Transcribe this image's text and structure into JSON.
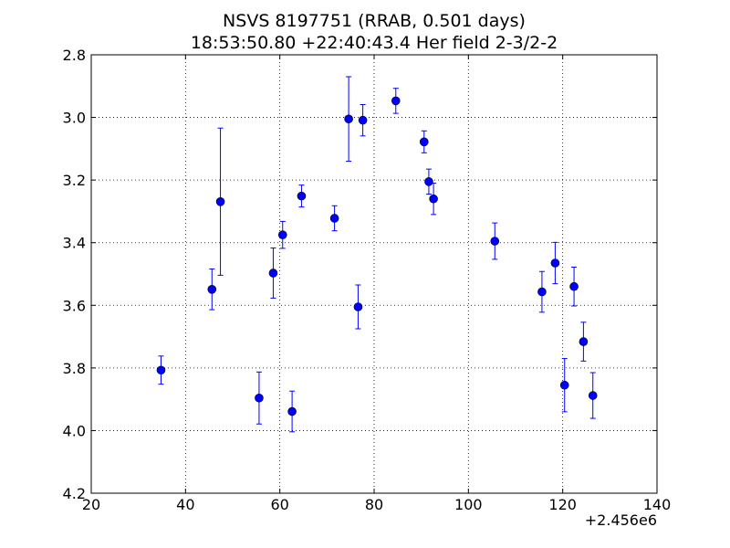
{
  "chart_data": {
    "type": "scatter",
    "title": "NSVS 8197751 (RRAB, 0.501 days)",
    "subtitle": "18:53:50.80 +22:40:43.4 Her field 2-3/2-2",
    "xlabel": "",
    "ylabel": "",
    "x_offset_label": "+2.456e6",
    "xlim": [
      20,
      140
    ],
    "ylim": [
      2.8,
      4.2
    ],
    "y_inverted": true,
    "x_ticks": [
      "20",
      "40",
      "60",
      "80",
      "100",
      "120",
      "140"
    ],
    "y_ticks": [
      "2.8",
      "3.0",
      "3.2",
      "3.4",
      "3.6",
      "3.8",
      "4.0",
      "4.2"
    ],
    "grid": true,
    "marker_color": "#0000ff",
    "points": [
      {
        "x": 34.8,
        "y": 3.807,
        "err": 0.045
      },
      {
        "x": 45.6,
        "y": 3.549,
        "err": 0.065
      },
      {
        "x": 47.4,
        "y": 3.269,
        "err": 0.235
      },
      {
        "x": 55.6,
        "y": 3.896,
        "err": 0.083
      },
      {
        "x": 58.6,
        "y": 3.497,
        "err": 0.08
      },
      {
        "x": 60.6,
        "y": 3.375,
        "err": 0.043
      },
      {
        "x": 62.6,
        "y": 3.939,
        "err": 0.065
      },
      {
        "x": 64.6,
        "y": 3.251,
        "err": 0.035
      },
      {
        "x": 71.6,
        "y": 3.322,
        "err": 0.04
      },
      {
        "x": 74.6,
        "y": 3.005,
        "err": 0.135
      },
      {
        "x": 76.6,
        "y": 3.605,
        "err": 0.07
      },
      {
        "x": 77.6,
        "y": 3.009,
        "err": 0.05
      },
      {
        "x": 84.6,
        "y": 2.947,
        "err": 0.04
      },
      {
        "x": 90.6,
        "y": 3.078,
        "err": 0.035
      },
      {
        "x": 91.6,
        "y": 3.205,
        "err": 0.04
      },
      {
        "x": 92.6,
        "y": 3.26,
        "err": 0.05
      },
      {
        "x": 105.6,
        "y": 3.395,
        "err": 0.058
      },
      {
        "x": 115.6,
        "y": 3.557,
        "err": 0.065
      },
      {
        "x": 118.4,
        "y": 3.465,
        "err": 0.066
      },
      {
        "x": 120.4,
        "y": 3.855,
        "err": 0.085
      },
      {
        "x": 122.4,
        "y": 3.54,
        "err": 0.062
      },
      {
        "x": 124.4,
        "y": 3.716,
        "err": 0.062
      },
      {
        "x": 126.4,
        "y": 3.888,
        "err": 0.073
      }
    ]
  }
}
